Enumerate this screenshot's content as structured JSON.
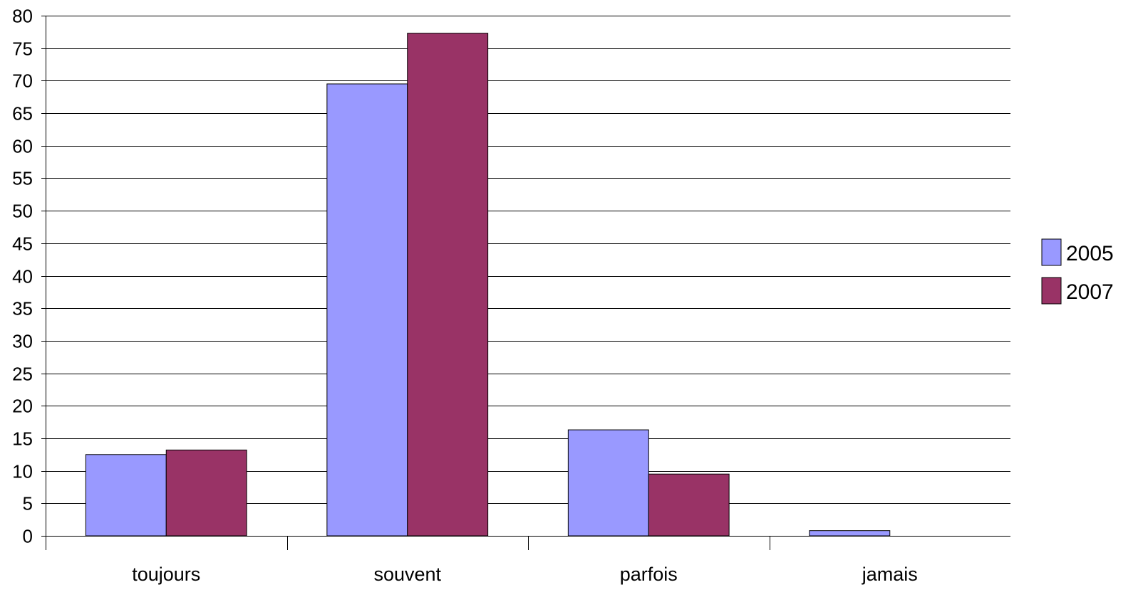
{
  "chart_data": {
    "type": "bar",
    "title": "",
    "xlabel": "",
    "ylabel": "",
    "categories": [
      "toujours",
      "souvent",
      "parfois",
      "jamais"
    ],
    "series": [
      {
        "name": "2005",
        "color": "#9999ff",
        "values": [
          12.5,
          69.5,
          16.3,
          0.8
        ]
      },
      {
        "name": "2007",
        "color": "#993366",
        "values": [
          13.2,
          77.3,
          9.5,
          0
        ]
      }
    ],
    "ylim": [
      0,
      80
    ],
    "ytick_step": 5,
    "yticks": [
      "0",
      "5",
      "10",
      "15",
      "20",
      "25",
      "30",
      "35",
      "40",
      "45",
      "50",
      "55",
      "60",
      "65",
      "70",
      "75",
      "80"
    ],
    "grid": true,
    "legend_position": "right"
  }
}
